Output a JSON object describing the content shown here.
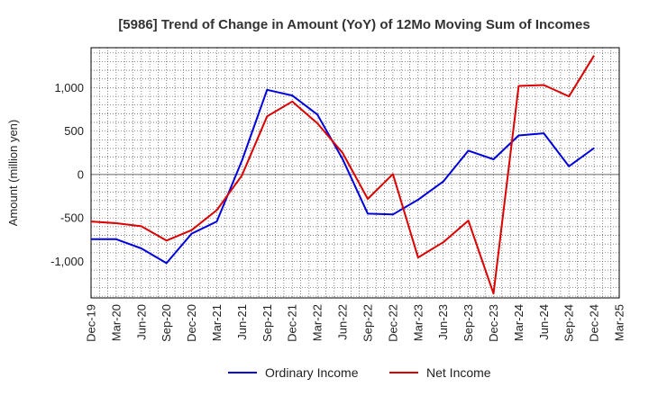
{
  "chart_data": {
    "type": "line",
    "title": "[5986]  Trend of Change in Amount (YoY) of 12Mo Moving Sum of Incomes",
    "xlabel": "",
    "ylabel": "Amount (million yen)",
    "categories": [
      "Dec-19",
      "Mar-20",
      "Jun-20",
      "Sep-20",
      "Dec-20",
      "Mar-21",
      "Jun-21",
      "Sep-21",
      "Dec-21",
      "Mar-22",
      "Jun-22",
      "Sep-22",
      "Dec-22",
      "Mar-23",
      "Jun-23",
      "Sep-23",
      "Dec-23",
      "Mar-24",
      "Jun-24",
      "Sep-24",
      "Dec-24",
      "Mar-25"
    ],
    "ylim": [
      -1420,
      1460
    ],
    "yticks": [
      -1000,
      -500,
      0,
      500,
      1000
    ],
    "ytick_labels": [
      "-1,000",
      "-500",
      "0",
      "500",
      "1,000"
    ],
    "grid": true,
    "legend_position": "bottom",
    "series": [
      {
        "name": "Ordinary Income",
        "color": "#0000dd",
        "values": [
          -745,
          -745,
          -850,
          -1020,
          -680,
          -540,
          160,
          975,
          910,
          690,
          180,
          -450,
          -460,
          -290,
          -80,
          275,
          175,
          450,
          475,
          95,
          305,
          null
        ]
      },
      {
        "name": "Net Income",
        "color": "#dd0000",
        "values": [
          -540,
          -560,
          -595,
          -760,
          -640,
          -410,
          -10,
          670,
          840,
          590,
          250,
          -280,
          5,
          -955,
          -780,
          -530,
          -1370,
          1020,
          1030,
          900,
          1370,
          null
        ]
      }
    ]
  }
}
